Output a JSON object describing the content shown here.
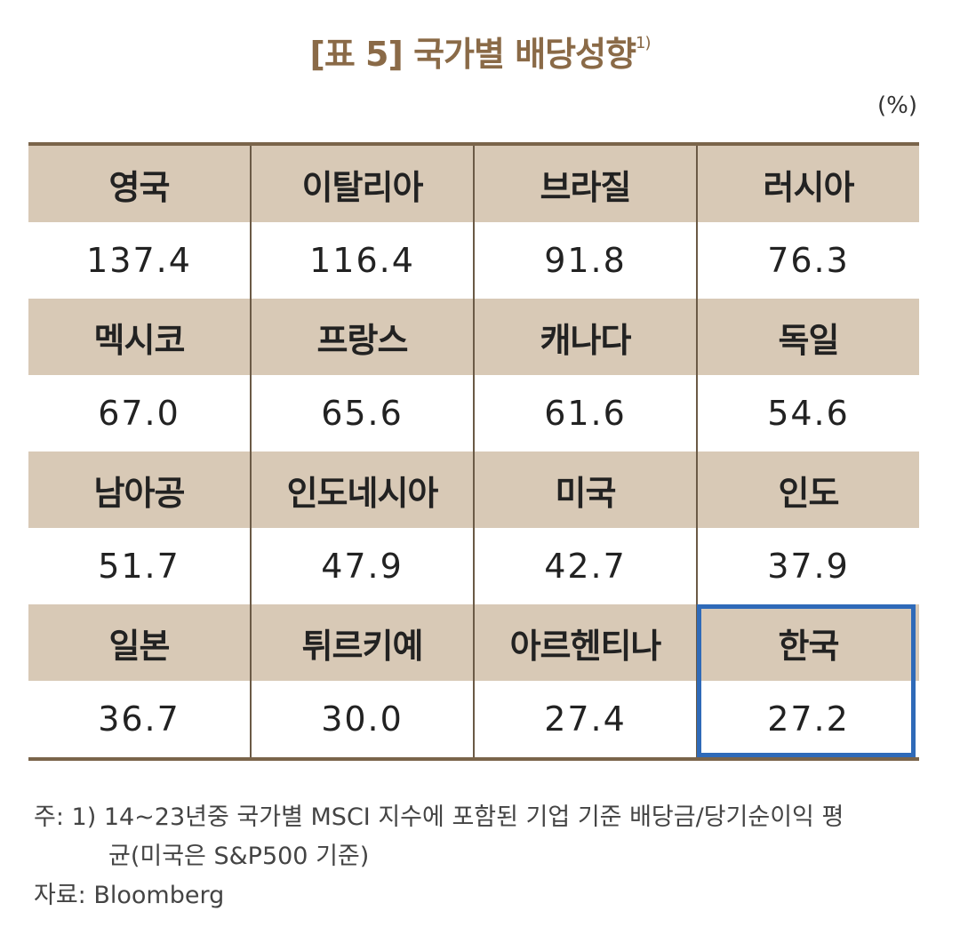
{
  "title": "[표 5] 국가별 배당성향",
  "title_footnote": "1)",
  "unit": "(%)",
  "rows": [
    {
      "headers": [
        "영국",
        "이탈리아",
        "브라질",
        "러시아"
      ],
      "values": [
        "137.4",
        "116.4",
        "91.8",
        "76.3"
      ]
    },
    {
      "headers": [
        "멕시코",
        "프랑스",
        "캐나다",
        "독일"
      ],
      "values": [
        "67.0",
        "65.6",
        "61.6",
        "54.6"
      ]
    },
    {
      "headers": [
        "남아공",
        "인도네시아",
        "미국",
        "인도"
      ],
      "values": [
        "51.7",
        "47.9",
        "42.7",
        "37.9"
      ]
    },
    {
      "headers": [
        "일본",
        "튀르키예",
        "아르헨티나",
        "한국"
      ],
      "values": [
        "36.7",
        "30.0",
        "27.4",
        "27.2"
      ]
    }
  ],
  "highlight_color": "#2f6ab8",
  "notes": {
    "line1": "주: 1) 14~23년중 국가별 MSCI 지수에 포함된 기업 기준 배당금/당기순이익 평",
    "line2": "균(미국은 S&P500 기준)",
    "source": "자료: Bloomberg"
  }
}
